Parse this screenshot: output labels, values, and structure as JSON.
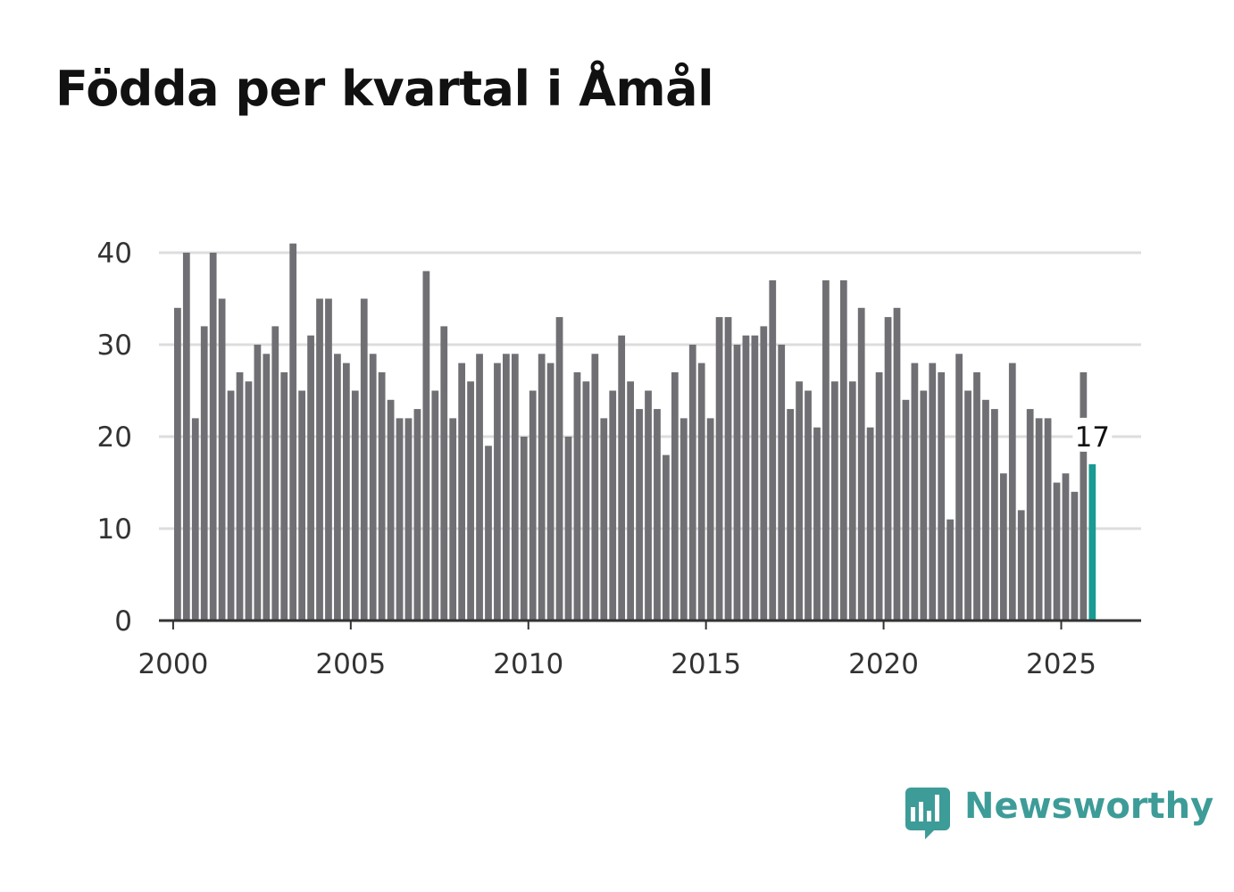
{
  "title": "Födda per kvartal i Åmål",
  "brand": {
    "name": "Newsworthy",
    "color": "#3d9c98",
    "icon": "bar-chart-speech-icon"
  },
  "colors": {
    "bar": "#707074",
    "highlight": "#1a9a93",
    "grid": "#dddddd",
    "axis": "#333333"
  },
  "chart_data": {
    "type": "bar",
    "title": "Födda per kvartal i Åmål",
    "xlabel": "",
    "ylabel": "",
    "ylim": [
      0,
      40
    ],
    "yticks": [
      0,
      10,
      20,
      30,
      40
    ],
    "xticks": [
      2000,
      2005,
      2010,
      2015,
      2020,
      2025
    ],
    "xrange": [
      1999.6,
      2027.25
    ],
    "x_start": 2000,
    "period": "quarter",
    "values": [
      34,
      40,
      22,
      32,
      40,
      35,
      25,
      27,
      26,
      30,
      29,
      32,
      27,
      41,
      25,
      31,
      35,
      35,
      29,
      28,
      25,
      35,
      29,
      27,
      24,
      22,
      22,
      23,
      38,
      25,
      32,
      22,
      28,
      26,
      29,
      19,
      28,
      29,
      29,
      20,
      25,
      29,
      28,
      33,
      20,
      27,
      26,
      29,
      22,
      25,
      31,
      26,
      23,
      25,
      23,
      18,
      27,
      22,
      30,
      28,
      22,
      33,
      33,
      30,
      31,
      31,
      32,
      37,
      30,
      23,
      26,
      25,
      21,
      37,
      26,
      37,
      26,
      34,
      21,
      27,
      33,
      34,
      24,
      28,
      25,
      28,
      27,
      11,
      29,
      25,
      27,
      24,
      23,
      16,
      28,
      12,
      23,
      22,
      22,
      15,
      16,
      14,
      27,
      17
    ],
    "highlight_index": 103,
    "annotation": "17"
  }
}
